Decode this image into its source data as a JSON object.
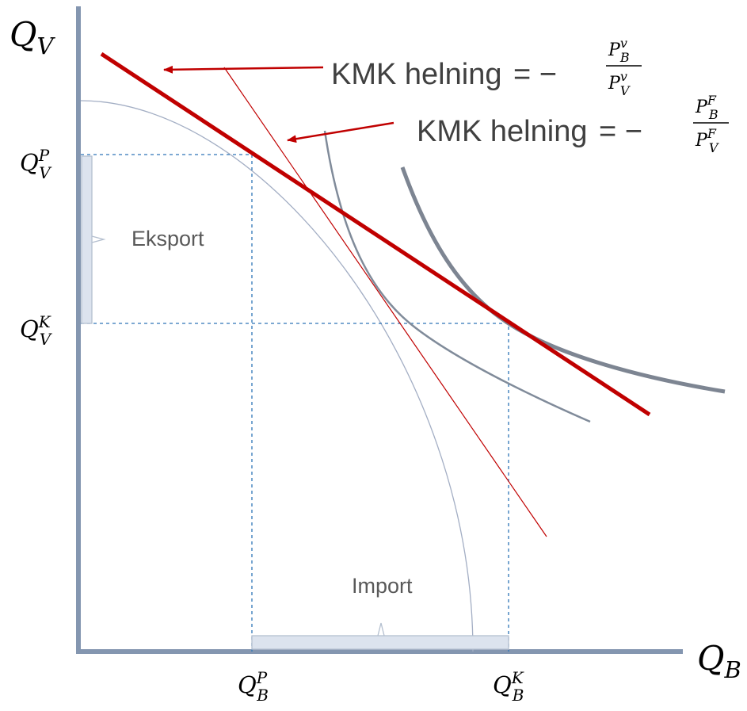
{
  "axes": {
    "y_label": {
      "main": "Q",
      "sub": "V"
    },
    "x_label": {
      "main": "Q",
      "sub": "B"
    }
  },
  "ticks": {
    "qv_p": {
      "main": "Q",
      "sub": "V",
      "sup": "P"
    },
    "qv_k": {
      "main": "Q",
      "sub": "V",
      "sup": "K"
    },
    "qb_p": {
      "main": "Q",
      "sub": "B",
      "sup": "P"
    },
    "qb_k": {
      "main": "Q",
      "sub": "B",
      "sup": "K"
    }
  },
  "brackets": {
    "export": "Eksport",
    "import": "Import"
  },
  "annotations": {
    "world_price": {
      "text": "KMK helning",
      "equals": "= −",
      "num": {
        "main": "P",
        "sub": "B",
        "sup": "v"
      },
      "den": {
        "main": "P",
        "sub": "V",
        "sup": "v"
      }
    },
    "domestic_price": {
      "text": "KMK helning",
      "equals": "= −",
      "num": {
        "main": "P",
        "sub": "B",
        "sup": "F"
      },
      "den": {
        "main": "P",
        "sub": "V",
        "sup": "F"
      }
    }
  },
  "colors": {
    "axis": "#8496b0",
    "price_line": "#c00000",
    "guides": "#2e75b6",
    "indifference": "#7d8592"
  }
}
